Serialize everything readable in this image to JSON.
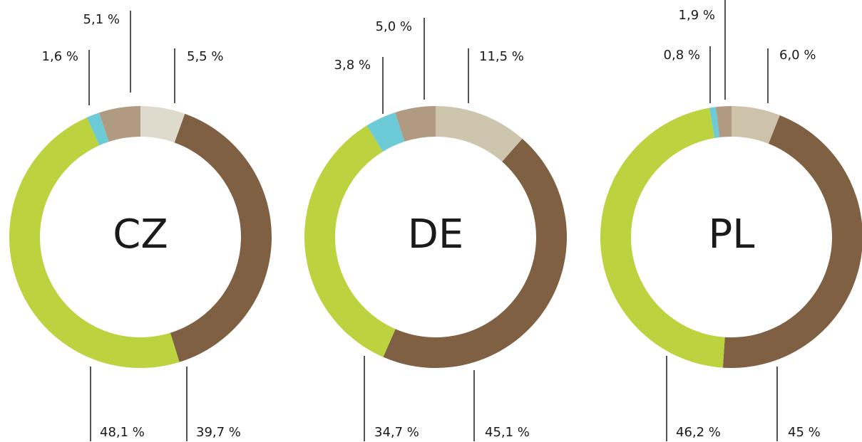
{
  "chart_data": [
    {
      "type": "pie",
      "title": "CZ",
      "values": [
        5.5,
        39.7,
        48.1,
        1.6,
        5.1
      ],
      "value_labels": [
        "5,5 %",
        "39,7 %",
        "48,1 %",
        "1,6 %",
        "5,1 %"
      ],
      "colors": [
        "#dfdbcc",
        "#806042",
        "#bcd23f",
        "#6ccbd6",
        "#b09a82"
      ]
    },
    {
      "type": "pie",
      "title": "DE",
      "values": [
        11.5,
        45.1,
        34.7,
        3.8,
        5.0
      ],
      "value_labels": [
        "11,5 %",
        "45,1 %",
        "34,7 %",
        "3,8 %",
        "5,0 %"
      ],
      "colors": [
        "#cdc5ae",
        "#806042",
        "#bcd23f",
        "#6ccbd6",
        "#b09a82"
      ]
    },
    {
      "type": "pie",
      "title": "PL",
      "values": [
        6.0,
        45,
        46.2,
        0.8,
        1.9
      ],
      "value_labels": [
        "6,0 %",
        "45 %",
        "46,2 %",
        "0,8 %",
        "1,9 %"
      ],
      "colors": [
        "#cdc3aa",
        "#806042",
        "#bcd23f",
        "#6ccbd6",
        "#b09a82"
      ]
    }
  ]
}
